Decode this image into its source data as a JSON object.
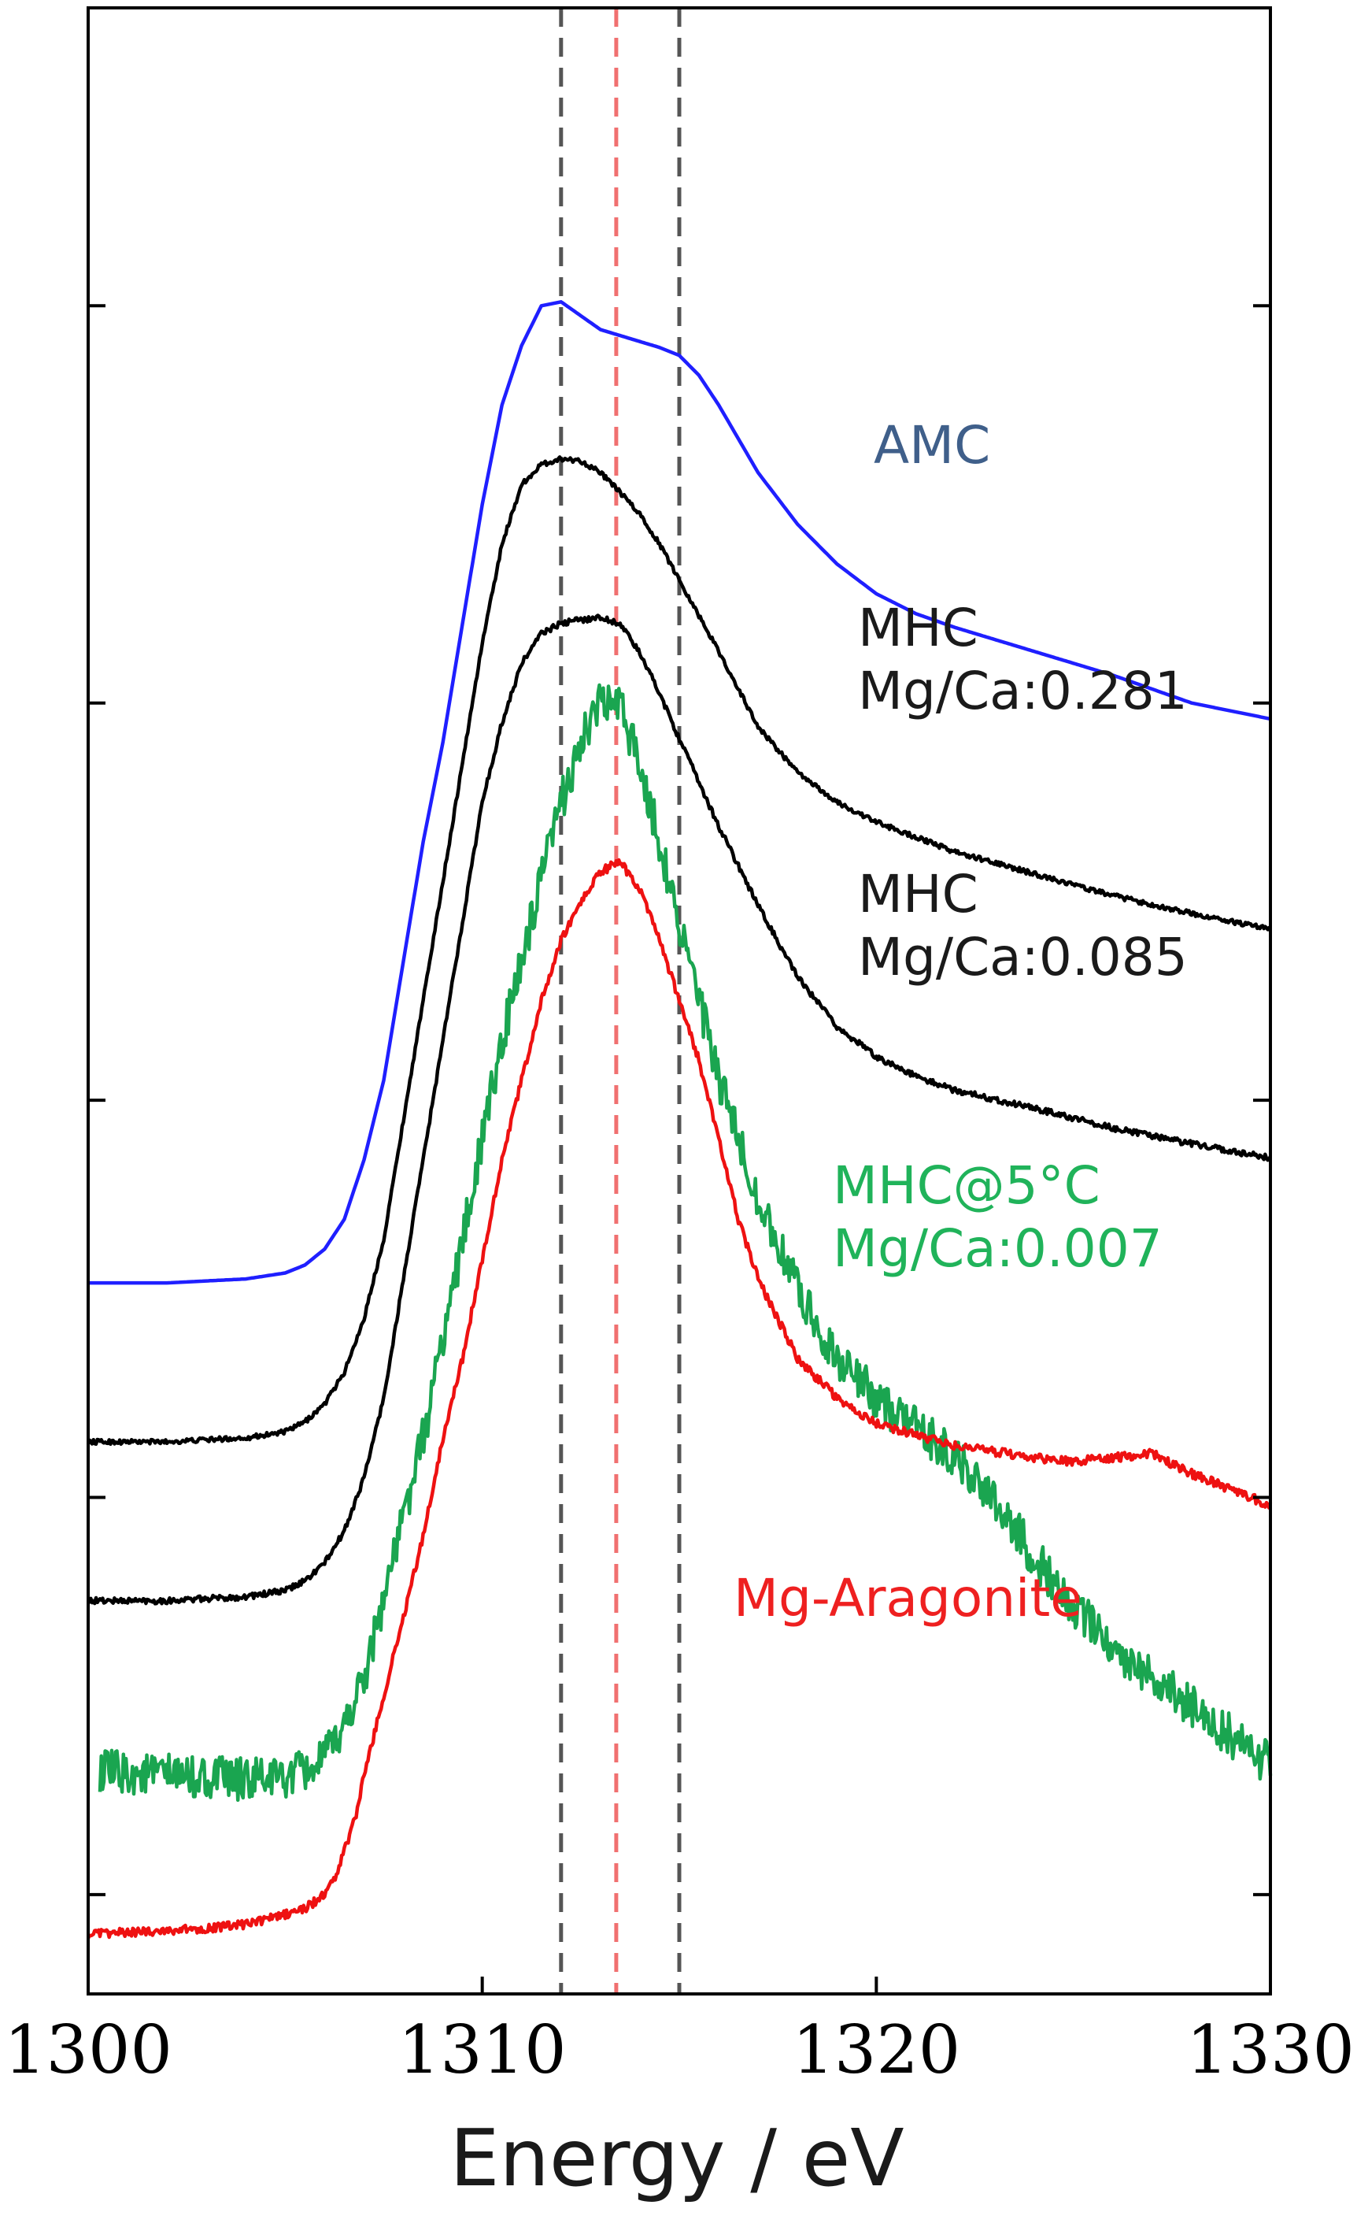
{
  "chart_data": {
    "type": "line",
    "title": "",
    "xlabel": "Energy / eV",
    "ylabel": "",
    "xlim": [
      1300,
      1330
    ],
    "ylim": [
      0,
      1
    ],
    "x_ticks": [
      1300,
      1310,
      1320,
      1330
    ],
    "x_tick_labels": [
      "1300",
      "1310",
      "1320",
      "1330"
    ],
    "y_ticks": [
      0.05,
      0.25,
      0.45,
      0.65,
      0.85
    ],
    "grid": false,
    "legend": "none",
    "reference_lines": [
      {
        "x": 1312.0,
        "color": "#555555",
        "style": "dashed"
      },
      {
        "x": 1313.4,
        "color": "#f07070",
        "style": "dashed"
      },
      {
        "x": 1315.0,
        "color": "#555555",
        "style": "dashed"
      }
    ],
    "series": [
      {
        "name": "AMC",
        "label_lines": [
          "AMC"
        ],
        "label_color": "#3f5f8a",
        "color": "#1f1fff",
        "noise": 0,
        "x": [
          1300,
          1302,
          1304,
          1305,
          1305.5,
          1306,
          1306.5,
          1307,
          1307.5,
          1308,
          1308.5,
          1309,
          1309.5,
          1310,
          1310.5,
          1311,
          1311.5,
          1312,
          1312.5,
          1313,
          1313.5,
          1314,
          1314.5,
          1315,
          1315.5,
          1316,
          1316.5,
          1317,
          1318,
          1319,
          1320,
          1321,
          1322,
          1324,
          1326,
          1328,
          1330
        ],
        "y": [
          0.358,
          0.358,
          0.36,
          0.363,
          0.367,
          0.375,
          0.39,
          0.42,
          0.46,
          0.52,
          0.58,
          0.63,
          0.69,
          0.75,
          0.8,
          0.83,
          0.85,
          0.852,
          0.845,
          0.838,
          0.835,
          0.832,
          0.829,
          0.825,
          0.815,
          0.8,
          0.783,
          0.766,
          0.74,
          0.72,
          0.705,
          0.695,
          0.688,
          0.676,
          0.664,
          0.65,
          0.642
        ]
      },
      {
        "name": "MHC Mg/Ca:0.281",
        "label_lines": [
          "MHC",
          "Mg/Ca:0.281"
        ],
        "label_color": "#1a1a1a",
        "color": "#000000",
        "noise": 0.0012,
        "x": [
          1300,
          1302,
          1304,
          1305,
          1305.5,
          1306,
          1306.5,
          1307,
          1307.5,
          1308,
          1308.5,
          1309,
          1309.5,
          1310,
          1310.5,
          1311,
          1311.5,
          1312,
          1312.5,
          1313,
          1313.5,
          1314,
          1314.5,
          1315,
          1315.5,
          1316,
          1316.5,
          1317,
          1318,
          1319,
          1320,
          1322,
          1324,
          1326,
          1328,
          1330
        ],
        "y": [
          0.278,
          0.278,
          0.28,
          0.283,
          0.288,
          0.297,
          0.313,
          0.34,
          0.38,
          0.44,
          0.5,
          0.56,
          0.62,
          0.68,
          0.73,
          0.76,
          0.77,
          0.773,
          0.772,
          0.766,
          0.756,
          0.745,
          0.73,
          0.712,
          0.694,
          0.676,
          0.657,
          0.638,
          0.615,
          0.6,
          0.59,
          0.575,
          0.564,
          0.553,
          0.544,
          0.536
        ]
      },
      {
        "name": "MHC Mg/Ca:0.085",
        "label_lines": [
          "MHC",
          "Mg/Ca:0.085"
        ],
        "label_color": "#1a1a1a",
        "color": "#000000",
        "noise": 0.0015,
        "x": [
          1300,
          1302,
          1304,
          1305,
          1305.5,
          1306,
          1306.5,
          1307,
          1307.5,
          1308,
          1308.5,
          1309,
          1309.5,
          1310,
          1310.5,
          1311,
          1311.5,
          1312,
          1312.5,
          1313,
          1313.5,
          1314,
          1314.5,
          1315,
          1315.5,
          1316,
          1316.5,
          1317,
          1318,
          1319,
          1320,
          1321,
          1322,
          1324,
          1326,
          1328,
          1330
        ],
        "y": [
          0.198,
          0.198,
          0.2,
          0.203,
          0.208,
          0.217,
          0.233,
          0.26,
          0.3,
          0.36,
          0.42,
          0.48,
          0.54,
          0.6,
          0.64,
          0.67,
          0.685,
          0.69,
          0.692,
          0.693,
          0.69,
          0.675,
          0.655,
          0.632,
          0.61,
          0.588,
          0.568,
          0.548,
          0.512,
          0.487,
          0.472,
          0.462,
          0.455,
          0.446,
          0.436,
          0.428,
          0.421
        ]
      },
      {
        "name": "MHC@5°C Mg/Ca:0.007",
        "label_lines": [
          "MHC@5°C",
          "Mg/Ca:0.007"
        ],
        "label_color": "#20b35a",
        "color": "#1aa550",
        "noise": 0.011,
        "x": [
          1300.3,
          1302,
          1304,
          1305,
          1305.5,
          1306,
          1306.5,
          1307,
          1307.5,
          1308,
          1308.5,
          1309,
          1309.5,
          1310,
          1310.5,
          1311,
          1311.5,
          1312,
          1312.5,
          1313,
          1313.5,
          1314,
          1314.5,
          1315,
          1315.5,
          1316,
          1316.5,
          1317,
          1318,
          1319,
          1320,
          1321,
          1322,
          1323,
          1324,
          1325,
          1326,
          1327,
          1328,
          1329,
          1330
        ],
        "y": [
          0.112,
          0.11,
          0.108,
          0.109,
          0.112,
          0.118,
          0.135,
          0.16,
          0.2,
          0.24,
          0.28,
          0.33,
          0.38,
          0.43,
          0.48,
          0.52,
          0.56,
          0.6,
          0.63,
          0.65,
          0.648,
          0.62,
          0.58,
          0.54,
          0.5,
          0.46,
          0.43,
          0.4,
          0.355,
          0.32,
          0.3,
          0.285,
          0.27,
          0.25,
          0.22,
          0.195,
          0.175,
          0.16,
          0.145,
          0.13,
          0.115
        ]
      },
      {
        "name": "Mg-Aragonite",
        "label_lines": [
          "Mg-Aragonite"
        ],
        "label_color": "#ee2020",
        "color": "#ee1111",
        "noise": 0.0022,
        "x": [
          1300,
          1302,
          1303,
          1304,
          1305,
          1305.5,
          1306,
          1306.3,
          1306.8,
          1307,
          1307.5,
          1308,
          1308.5,
          1309,
          1309.5,
          1310,
          1310.5,
          1311,
          1311.5,
          1312,
          1312.5,
          1313,
          1313.5,
          1314,
          1314.5,
          1315,
          1315.5,
          1316,
          1316.5,
          1317,
          1318,
          1319,
          1320,
          1322,
          1324,
          1325,
          1326,
          1327,
          1328,
          1329,
          1330
        ],
        "y": [
          0.03,
          0.032,
          0.033,
          0.035,
          0.04,
          0.043,
          0.05,
          0.06,
          0.09,
          0.11,
          0.15,
          0.19,
          0.23,
          0.28,
          0.32,
          0.37,
          0.42,
          0.46,
          0.5,
          0.53,
          0.55,
          0.565,
          0.57,
          0.556,
          0.53,
          0.5,
          0.47,
          0.43,
          0.39,
          0.36,
          0.32,
          0.3,
          0.287,
          0.276,
          0.27,
          0.268,
          0.27,
          0.272,
          0.262,
          0.254,
          0.246
        ]
      }
    ]
  }
}
